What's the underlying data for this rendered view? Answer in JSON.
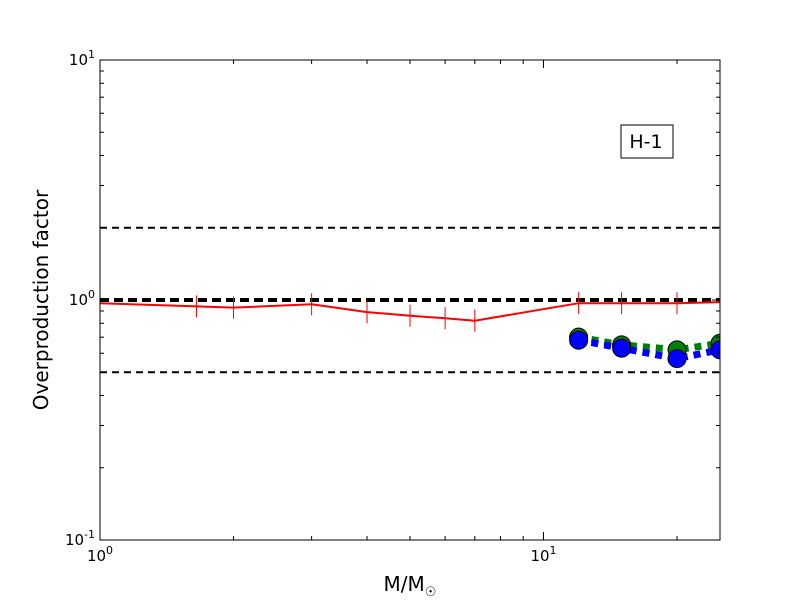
{
  "chart_data": {
    "type": "line",
    "xscale": "log",
    "yscale": "log",
    "xlim": [
      1,
      25
    ],
    "ylim": [
      0.1,
      10
    ],
    "xlabel": "M/M",
    "xlabel_sub": "☉",
    "ylabel": "Overproduction factor",
    "annotation": "H-1",
    "ticks": {
      "x": [
        {
          "value": 1,
          "base": "10",
          "exp": "0"
        },
        {
          "value": 10,
          "base": "10",
          "exp": "1"
        }
      ],
      "y": [
        {
          "value": 0.1,
          "base": "10",
          "exp": "-1"
        },
        {
          "value": 1,
          "base": "10",
          "exp": "0"
        },
        {
          "value": 10,
          "base": "10",
          "exp": "1"
        }
      ]
    },
    "reference_lines": [
      {
        "y": 2.0,
        "color": "#000000",
        "style": "dashed"
      },
      {
        "y": 1.0,
        "color": "#000000",
        "style": "dashed-thick"
      },
      {
        "y": 0.5,
        "color": "#000000",
        "style": "dashed"
      }
    ],
    "series": [
      {
        "color": "#ff0000",
        "style": "solid",
        "marker": "vline",
        "points": [
          {
            "x": 1.0,
            "y": 0.97
          },
          {
            "x": 1.65,
            "y": 0.94
          },
          {
            "x": 2.0,
            "y": 0.93
          },
          {
            "x": 3.0,
            "y": 0.96
          },
          {
            "x": 4.0,
            "y": 0.89
          },
          {
            "x": 5.0,
            "y": 0.86
          },
          {
            "x": 6.0,
            "y": 0.84
          },
          {
            "x": 7.0,
            "y": 0.82
          },
          {
            "x": 12.0,
            "y": 0.97
          },
          {
            "x": 15.0,
            "y": 0.97
          },
          {
            "x": 20.0,
            "y": 0.97
          },
          {
            "x": 25.0,
            "y": 0.98
          }
        ]
      },
      {
        "color": "#008000",
        "style": "dotted",
        "marker": "circle",
        "points": [
          {
            "x": 12.0,
            "y": 0.7
          },
          {
            "x": 15.0,
            "y": 0.65
          },
          {
            "x": 20.0,
            "y": 0.62
          },
          {
            "x": 25.0,
            "y": 0.66
          }
        ]
      },
      {
        "color": "#0000ff",
        "style": "dotted",
        "marker": "circle",
        "points": [
          {
            "x": 12.0,
            "y": 0.68
          },
          {
            "x": 15.0,
            "y": 0.63
          },
          {
            "x": 20.0,
            "y": 0.57
          },
          {
            "x": 25.0,
            "y": 0.62
          }
        ]
      }
    ]
  }
}
